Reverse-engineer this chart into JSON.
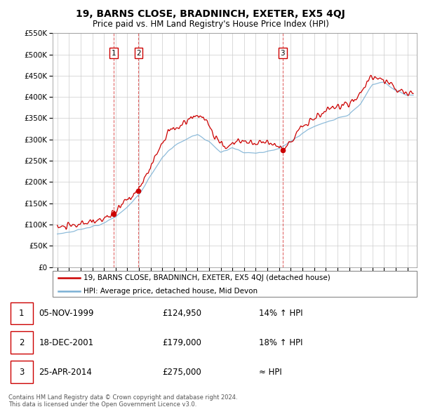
{
  "title": "19, BARNS CLOSE, BRADNINCH, EXETER, EX5 4QJ",
  "subtitle": "Price paid vs. HM Land Registry's House Price Index (HPI)",
  "legend_label_red": "19, BARNS CLOSE, BRADNINCH, EXETER, EX5 4QJ (detached house)",
  "legend_label_blue": "HPI: Average price, detached house, Mid Devon",
  "footer_line1": "Contains HM Land Registry data © Crown copyright and database right 2024.",
  "footer_line2": "This data is licensed under the Open Government Licence v3.0.",
  "transactions": [
    {
      "label": "1",
      "date": "05-NOV-1999",
      "price": "£124,950",
      "relation": "14% ↑ HPI"
    },
    {
      "label": "2",
      "date": "18-DEC-2001",
      "price": "£179,000",
      "relation": "18% ↑ HPI"
    },
    {
      "label": "3",
      "date": "25-APR-2014",
      "price": "£275,000",
      "relation": "≈ HPI"
    }
  ],
  "transaction_dates": [
    1999.84,
    2001.96,
    2014.31
  ],
  "transaction_prices": [
    124950,
    179000,
    275000
  ],
  "ylim": [
    0,
    550000
  ],
  "yticks": [
    0,
    50000,
    100000,
    150000,
    200000,
    250000,
    300000,
    350000,
    400000,
    450000,
    500000,
    550000
  ],
  "background_color": "#ffffff",
  "grid_color": "#cccccc",
  "red_color": "#cc0000",
  "blue_color": "#7ab0d4"
}
